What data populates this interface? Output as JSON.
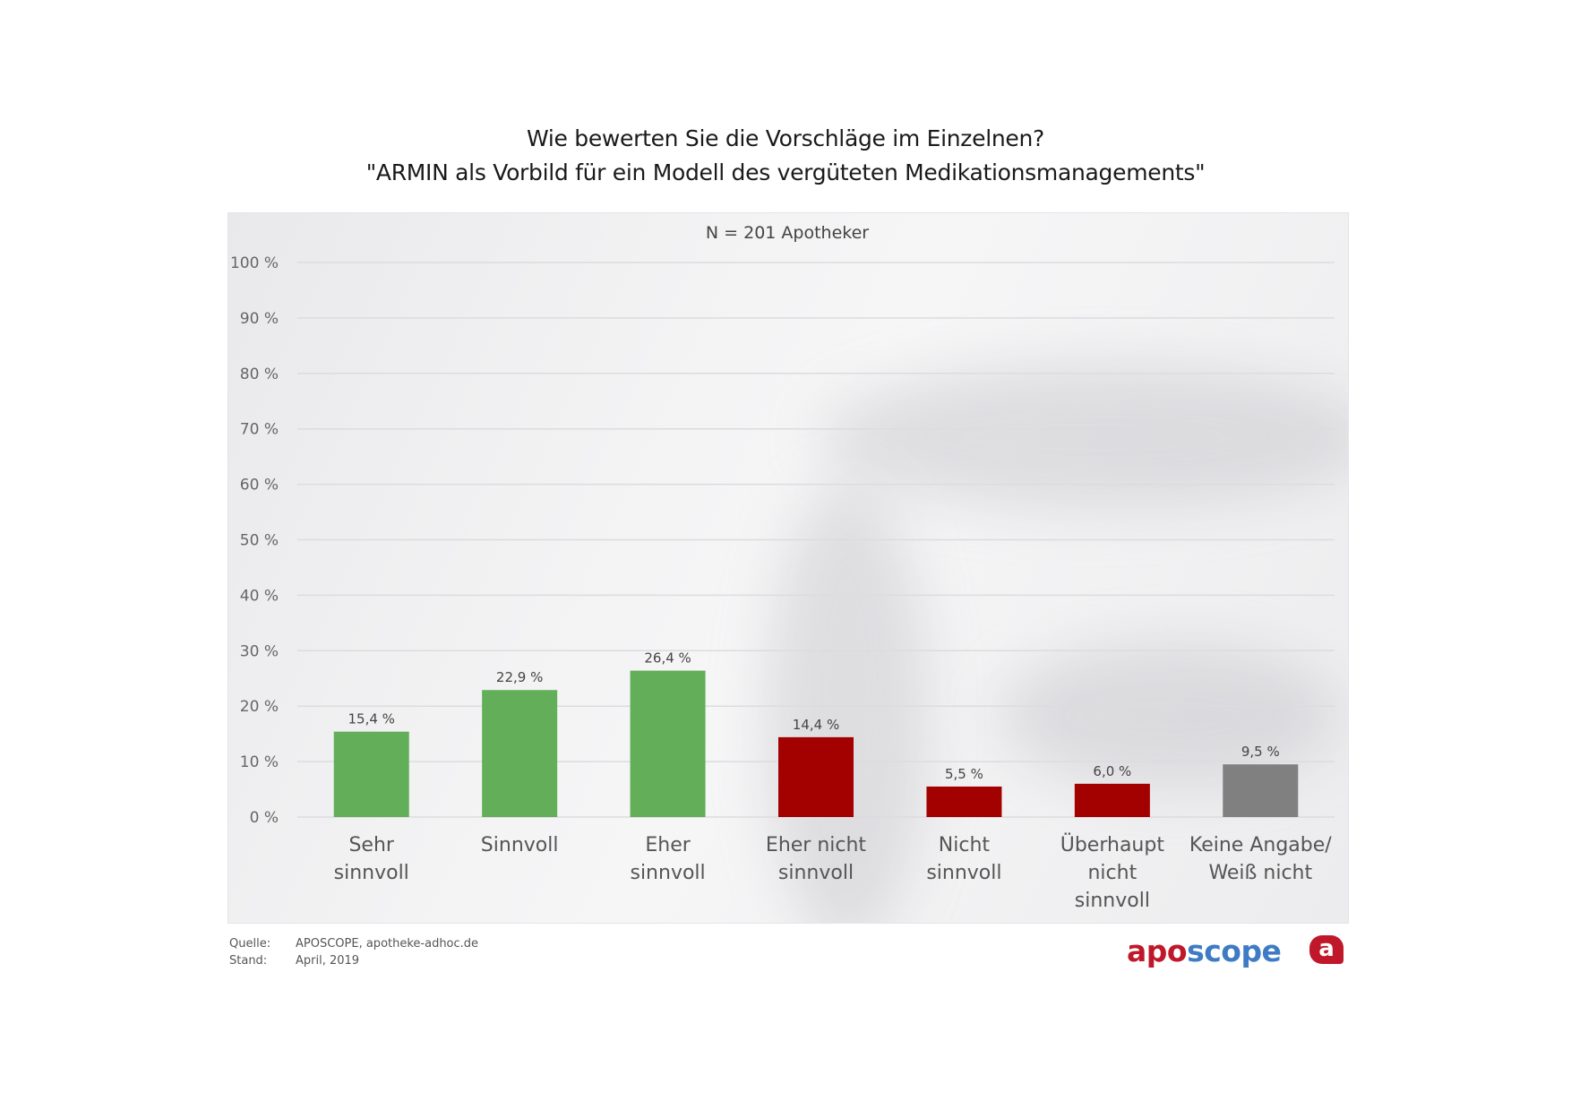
{
  "header": {
    "title_line1": "Wie bewerten Sie die Vorschläge im Einzelnen?",
    "title_line2": "\"ARMIN als Vorbild für ein Modell des vergüteten Medikationsmanagements\""
  },
  "chart_data": {
    "type": "bar",
    "title": "Wie bewerten Sie die Vorschläge im Einzelnen? \"ARMIN als Vorbild für ein Modell des vergüteten Medikationsmanagements\"",
    "subtitle": "N = 201 Apotheker",
    "xlabel": "",
    "ylabel": "",
    "ylim": [
      0,
      100
    ],
    "yticks": [
      0,
      10,
      20,
      30,
      40,
      50,
      60,
      70,
      80,
      90,
      100
    ],
    "ytick_labels": [
      "0 %",
      "10 %",
      "20 %",
      "30 %",
      "40 %",
      "50 %",
      "60 %",
      "70 %",
      "80 %",
      "90 %",
      "100 %"
    ],
    "grid": true,
    "categories": [
      [
        "Sehr",
        "sinnvoll"
      ],
      [
        "Sinnvoll"
      ],
      [
        "Eher",
        "sinnvoll"
      ],
      [
        "Eher nicht",
        "sinnvoll"
      ],
      [
        "Nicht",
        "sinnvoll"
      ],
      [
        "Überhaupt",
        "nicht",
        "sinnvoll"
      ],
      [
        "Keine Angabe/",
        "Weiß nicht"
      ]
    ],
    "values": [
      15.4,
      22.9,
      26.4,
      14.4,
      5.5,
      6.0,
      9.5
    ],
    "data_labels": [
      "15,4 %",
      "22,9 %",
      "26,4 %",
      "14,4 %",
      "5,5 %",
      "6,0 %",
      "9,5 %"
    ],
    "colors": [
      "#63ae59",
      "#63ae59",
      "#63ae59",
      "#a30000",
      "#a30000",
      "#a30000",
      "#808080"
    ]
  },
  "footer": {
    "source_label": "Quelle:",
    "source_value": "APOSCOPE, apotheke-adhoc.de",
    "date_label": "Stand:",
    "date_value": "April, 2019"
  },
  "logo": {
    "part1": "apo",
    "part2": "scope",
    "badge": "a",
    "color_primary": "#c0182b",
    "color_secondary": "#3f7bc4"
  }
}
